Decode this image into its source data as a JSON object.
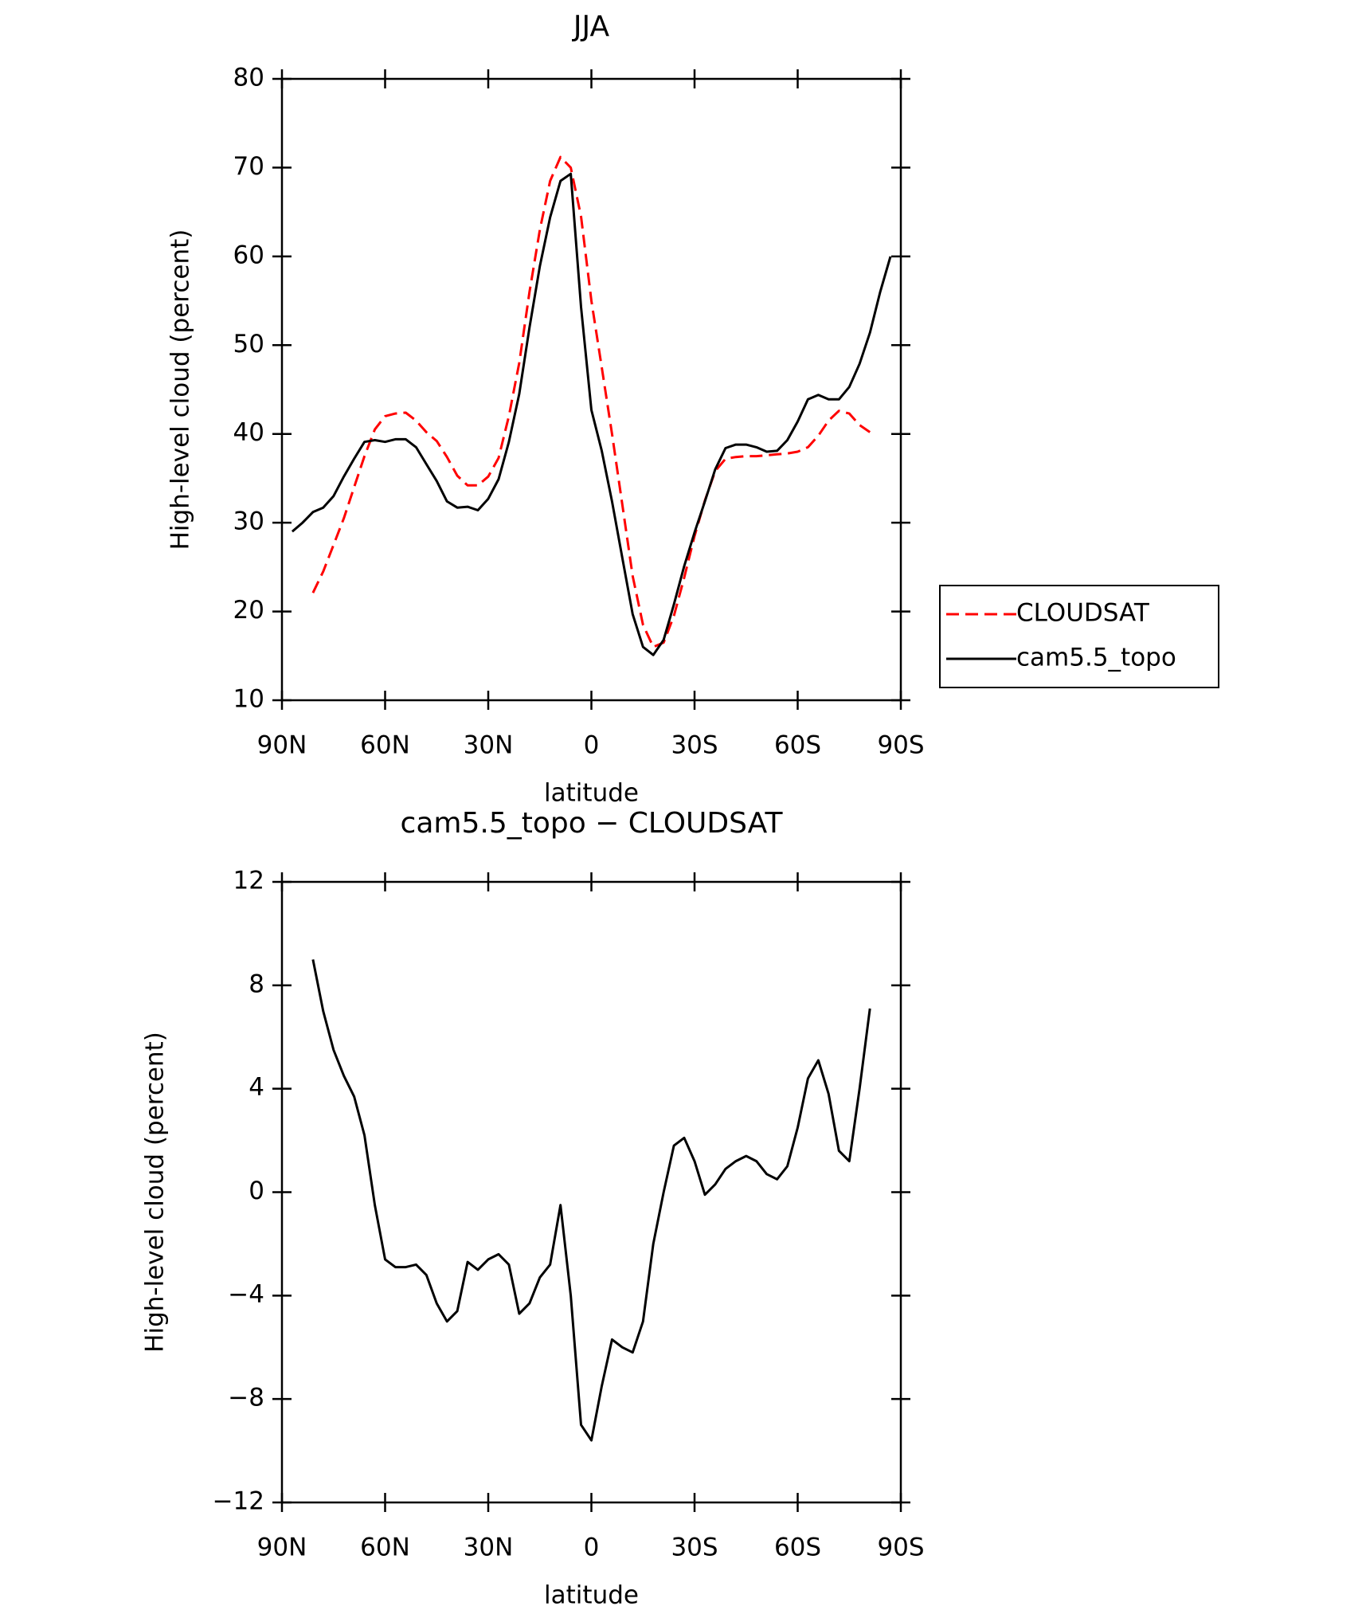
{
  "chart_data": [
    {
      "type": "line",
      "title": "JJA",
      "xlabel": "latitude",
      "ylabel": "High-level cloud (percent)",
      "x": [
        87,
        84,
        81,
        78,
        75,
        72,
        69,
        66,
        63,
        60,
        57,
        54,
        51,
        48,
        45,
        42,
        39,
        36,
        33,
        30,
        27,
        24,
        21,
        18,
        15,
        12,
        9,
        6,
        3,
        0,
        -3,
        -6,
        -9,
        -12,
        -15,
        -18,
        -21,
        -24,
        -27,
        -30,
        -33,
        -36,
        -39,
        -42,
        -45,
        -48,
        -51,
        -54,
        -57,
        -60,
        -63,
        -66,
        -69,
        -72,
        -75,
        -78,
        -81,
        -84,
        -87
      ],
      "series": [
        {
          "name": "CLOUDSAT",
          "color": "#ff0000",
          "dash": "dashed",
          "values": [
            null,
            null,
            22.1,
            24.5,
            27.5,
            30.5,
            34.0,
            37.5,
            40.5,
            42.0,
            42.3,
            42.4,
            41.5,
            40.2,
            39.2,
            37.4,
            35.3,
            34.2,
            34.2,
            35.2,
            37.3,
            42.0,
            48.0,
            56.0,
            63.0,
            68.5,
            71.2,
            70.0,
            64.5,
            55.0,
            47.5,
            40.0,
            32.0,
            24.0,
            18.5,
            16.0,
            16.5,
            19.5,
            23.8,
            28.5,
            32.5,
            35.8,
            37.2,
            37.4,
            37.5,
            37.5,
            37.6,
            37.7,
            37.8,
            38.0,
            38.5,
            39.8,
            41.5,
            42.6,
            42.3,
            41.0,
            40.2,
            null,
            null
          ]
        },
        {
          "name": "cam5.5_topo",
          "color": "#000000",
          "dash": "solid",
          "values": [
            29.0,
            30.0,
            31.2,
            31.7,
            33.0,
            35.2,
            37.2,
            39.1,
            39.3,
            39.1,
            39.4,
            39.4,
            38.5,
            36.6,
            34.7,
            32.4,
            31.7,
            31.8,
            31.4,
            32.7,
            34.9,
            39.1,
            44.5,
            52.0,
            58.9,
            64.4,
            68.5,
            69.3,
            54.3,
            42.7,
            38.1,
            32.4,
            26.0,
            19.7,
            16.0,
            15.1,
            16.8,
            20.8,
            25.1,
            28.9,
            32.4,
            36.0,
            38.4,
            38.8,
            38.8,
            38.5,
            38.0,
            38.1,
            39.3,
            41.4,
            43.9,
            44.4,
            43.9,
            43.9,
            45.3,
            47.9,
            51.4,
            56.0,
            60.0
          ]
        }
      ],
      "xlim": [
        90,
        -90
      ],
      "xticks": [
        {
          "value": 90,
          "label": "90N"
        },
        {
          "value": 60,
          "label": "60N"
        },
        {
          "value": 30,
          "label": "30N"
        },
        0,
        {
          "value": -30,
          "label": "30S"
        },
        {
          "value": -60,
          "label": "60S"
        },
        {
          "value": -90,
          "label": "90S"
        }
      ],
      "ylim": [
        10,
        80
      ],
      "yticks": [
        10,
        20,
        30,
        40,
        50,
        60,
        70,
        80
      ],
      "legend": "right"
    },
    {
      "type": "line",
      "title": "cam5.5_topo − CLOUDSAT",
      "xlabel": "latitude",
      "ylabel": "High-level cloud (percent)",
      "x": [
        81,
        78,
        75,
        72,
        69,
        66,
        63,
        60,
        57,
        54,
        51,
        48,
        45,
        42,
        39,
        36,
        33,
        30,
        27,
        24,
        21,
        18,
        15,
        12,
        9,
        6,
        3,
        0,
        -3,
        -6,
        -9,
        -12,
        -15,
        -18,
        -21,
        -24,
        -27,
        -30,
        -33,
        -36,
        -39,
        -42,
        -45,
        -48,
        -51,
        -54,
        -57,
        -60,
        -63,
        -66,
        -69,
        -72,
        -75,
        -78,
        -81
      ],
      "series": [
        {
          "color": "#000000",
          "dash": "solid",
          "values": [
            9.0,
            7.0,
            5.5,
            4.5,
            3.7,
            2.2,
            -0.5,
            -2.6,
            -2.9,
            -2.9,
            -2.8,
            -3.2,
            -4.3,
            -5.0,
            -4.6,
            -2.7,
            -3.0,
            -2.6,
            -2.4,
            -2.8,
            -4.7,
            -4.3,
            -3.3,
            -2.8,
            -0.5,
            -4.0,
            -9.0,
            -9.6,
            -7.5,
            -5.7,
            -6.0,
            -6.2,
            -5.0,
            -2.0,
            0.0,
            1.8,
            2.1,
            1.2,
            -0.1,
            0.3,
            0.9,
            1.2,
            1.4,
            1.2,
            0.7,
            0.5,
            1.0,
            2.5,
            4.4,
            5.1,
            3.8,
            1.6,
            1.2,
            4.0,
            7.1
          ]
        }
      ],
      "xlim": [
        90,
        -90
      ],
      "xticks": [
        {
          "value": 90,
          "label": "90N"
        },
        {
          "value": 60,
          "label": "60N"
        },
        {
          "value": 30,
          "label": "30N"
        },
        0,
        {
          "value": -30,
          "label": "30S"
        },
        {
          "value": -60,
          "label": "60S"
        },
        {
          "value": -90,
          "label": "90S"
        }
      ],
      "ylim": [
        -12,
        12
      ],
      "yticks": [
        {
          "value": -12,
          "label": "−12"
        },
        {
          "value": -8,
          "label": "−8"
        },
        {
          "value": -4,
          "label": "−4"
        },
        0,
        4,
        8,
        12
      ]
    }
  ]
}
